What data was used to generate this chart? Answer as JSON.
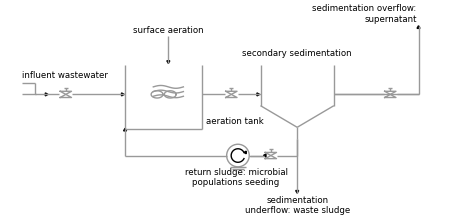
{
  "bg_color": "#ffffff",
  "line_color": "#999999",
  "text_color": "#000000",
  "lw": 1.0,
  "labels": {
    "influent": "influent wastewater",
    "surface_aeration": "surface aeration",
    "aeration_tank": "aeration tank",
    "secondary_sed": "secondary sedimentation",
    "sed_overflow": "sedimentation overflow:\nsupernatant",
    "return_sludge": "return sludge: microbial\npopulations seeding",
    "sed_underflow": "sedimentation\nunderflow: waste sludge"
  },
  "fontsize": 6.2
}
